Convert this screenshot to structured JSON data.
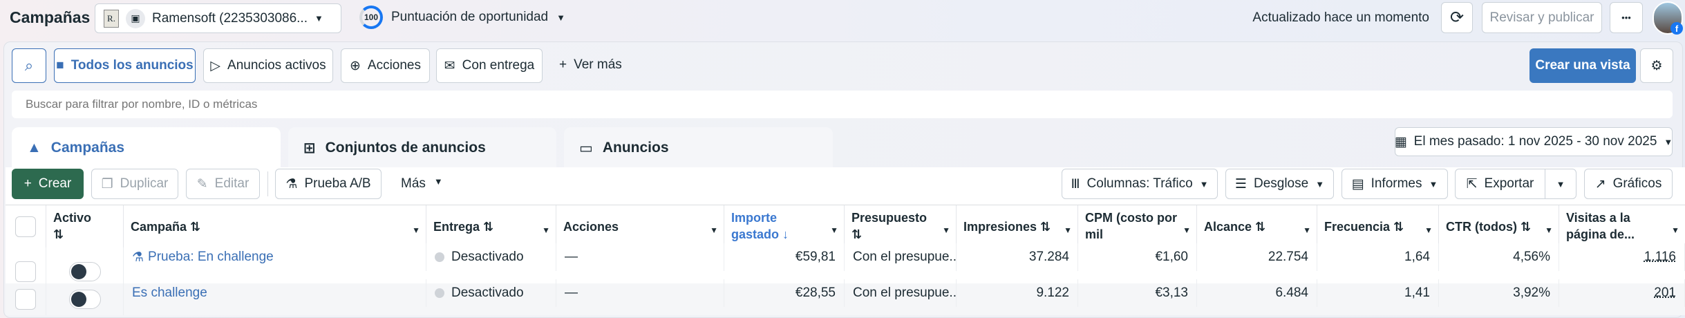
{
  "header": {
    "title": "Campañas",
    "account_name": "Ramensoft (2235303086...",
    "score_value": "100",
    "score_label": "Puntuación de oportunidad",
    "updated_text": "Actualizado hace un momento",
    "review_publish": "Revisar y publicar",
    "more": "•••"
  },
  "filters": {
    "items": [
      {
        "label": "Todos los anuncios"
      },
      {
        "label": "Anuncios activos"
      },
      {
        "label": "Acciones"
      },
      {
        "label": "Con entrega"
      }
    ],
    "see_more": "Ver más",
    "create_view": "Crear una vista"
  },
  "search": {
    "placeholder": "Buscar para filtrar por nombre, ID o métricas"
  },
  "tabs": [
    {
      "label": "Campañas"
    },
    {
      "label": "Conjuntos de anuncios"
    },
    {
      "label": "Anuncios"
    }
  ],
  "date_range": "El mes pasado: 1 nov 2025 - 30 nov 2025",
  "toolbar": {
    "create": "Crear",
    "duplicate": "Duplicar",
    "edit": "Editar",
    "ab_test": "Prueba A/B",
    "more": "Más",
    "columns": "Columnas: Tráfico",
    "breakdown": "Desglose",
    "reports": "Informes",
    "export": "Exportar",
    "charts": "Gráficos"
  },
  "colors": {
    "accent": "#3a6fb5",
    "create": "#2d6a4f"
  },
  "table": {
    "headers": [
      "Activo ⇅",
      "Campaña ⇅",
      "Entrega ⇅",
      "Acciones",
      "Importe gastado ↓",
      "Presupuesto ⇅",
      "Impresiones ⇅",
      "CPM (costo por mil impresione...",
      "Alcance ⇅",
      "Frecuencia ⇅",
      "CTR (todos) ⇅",
      "Visitas a la página de..."
    ],
    "rows": [
      {
        "active": false,
        "is_test": true,
        "campaign": "Prueba: En challenge",
        "delivery": "Desactivado",
        "actions": "—",
        "spent": "€59,81",
        "budget": "Con el presupue...",
        "impressions": "37.284",
        "cpm": "€1,60",
        "reach": "22.754",
        "frequency": "1,64",
        "ctr": "4,56%",
        "visits": "1.116"
      },
      {
        "active": false,
        "is_test": false,
        "campaign": "Es challenge",
        "delivery": "Desactivado",
        "actions": "—",
        "spent": "€28,55",
        "budget": "Con el presupue...",
        "impressions": "9.122",
        "cpm": "€3,13",
        "reach": "6.484",
        "frequency": "1,41",
        "ctr": "3,92%",
        "visits": "201"
      }
    ]
  }
}
